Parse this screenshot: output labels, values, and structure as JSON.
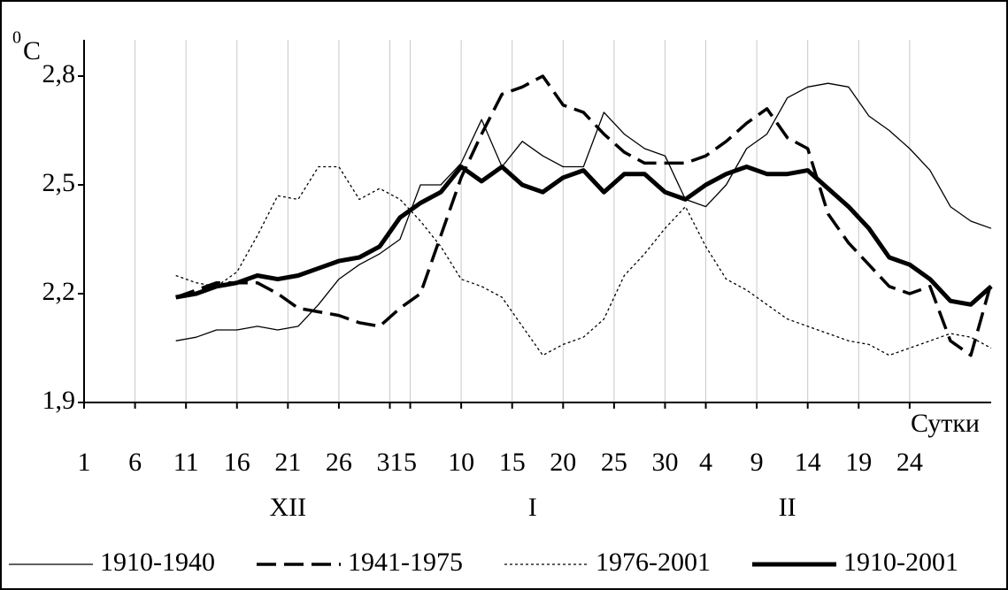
{
  "chart_data": {
    "type": "line",
    "y_label": "C",
    "y_label_sup": "0",
    "x_label": "Сутки",
    "x": [
      10,
      12,
      14,
      16,
      18,
      20,
      22,
      24,
      26,
      28,
      30,
      32,
      34,
      36,
      38,
      40,
      42,
      44,
      46,
      48,
      50,
      52,
      54,
      56,
      58,
      60,
      62,
      64,
      66,
      68,
      70,
      72,
      74,
      76,
      78,
      80,
      82,
      84,
      86,
      88,
      90
    ],
    "xlim": [
      1,
      90
    ],
    "xticks": [
      1,
      6,
      11,
      16,
      21,
      26,
      31,
      {
        "value": 33,
        "label": "5"
      },
      {
        "value": 38,
        "label": "10"
      },
      {
        "value": 43,
        "label": "15"
      },
      {
        "value": 48,
        "label": "20"
      },
      {
        "value": 53,
        "label": "25"
      },
      {
        "value": 58,
        "label": "30"
      },
      {
        "value": 62,
        "label": "4"
      },
      {
        "value": 67,
        "label": "9"
      },
      {
        "value": 72,
        "label": "14"
      },
      {
        "value": 77,
        "label": "19"
      },
      {
        "value": 82,
        "label": "24"
      }
    ],
    "month_labels": [
      {
        "value": 21,
        "label": "XII"
      },
      {
        "value": 45,
        "label": "I"
      },
      {
        "value": 70,
        "label": "II"
      }
    ],
    "ylim": [
      1.9,
      2.9
    ],
    "yticks": [
      {
        "value": 1.9,
        "label": "1,9"
      },
      {
        "value": 2.2,
        "label": "2,2"
      },
      {
        "value": 2.5,
        "label": "2,5"
      },
      {
        "value": 2.8,
        "label": "2,8"
      }
    ],
    "grid": true,
    "legend": "bottom",
    "series": [
      {
        "name": "1910-1940",
        "color": "#000000",
        "line_style": "thin",
        "values": [
          2.07,
          2.08,
          2.1,
          2.1,
          2.11,
          2.1,
          2.11,
          2.17,
          2.24,
          2.28,
          2.31,
          2.35,
          2.5,
          2.5,
          2.56,
          2.68,
          2.55,
          2.62,
          2.58,
          2.55,
          2.55,
          2.7,
          2.64,
          2.6,
          2.58,
          2.46,
          2.44,
          2.5,
          2.6,
          2.64,
          2.74,
          2.77,
          2.78,
          2.77,
          2.69,
          2.65,
          2.6,
          2.54,
          2.44,
          2.4,
          2.38
        ]
      },
      {
        "name": "1941-1975",
        "color": "#000000",
        "line_style": "dashed",
        "values": [
          2.19,
          2.21,
          2.23,
          2.23,
          2.23,
          2.2,
          2.16,
          2.15,
          2.14,
          2.12,
          2.11,
          2.16,
          2.2,
          2.36,
          2.52,
          2.64,
          2.75,
          2.77,
          2.8,
          2.72,
          2.7,
          2.64,
          2.59,
          2.56,
          2.56,
          2.56,
          2.58,
          2.62,
          2.67,
          2.71,
          2.63,
          2.6,
          2.42,
          2.34,
          2.28,
          2.22,
          2.2,
          2.22,
          2.07,
          2.03,
          2.23
        ]
      },
      {
        "name": "1976-2001",
        "color": "#000000",
        "line_style": "dotted",
        "values": [
          2.25,
          2.23,
          2.22,
          2.26,
          2.36,
          2.47,
          2.46,
          2.55,
          2.55,
          2.46,
          2.49,
          2.46,
          2.4,
          2.33,
          2.24,
          2.22,
          2.19,
          2.11,
          2.03,
          2.06,
          2.08,
          2.13,
          2.25,
          2.31,
          2.38,
          2.44,
          2.33,
          2.24,
          2.21,
          2.17,
          2.13,
          2.11,
          2.09,
          2.07,
          2.06,
          2.03,
          2.05,
          2.07,
          2.09,
          2.08,
          2.05
        ]
      },
      {
        "name": "1910-2001",
        "color": "#000000",
        "line_style": "thick",
        "values": [
          2.19,
          2.2,
          2.22,
          2.23,
          2.25,
          2.24,
          2.25,
          2.27,
          2.29,
          2.3,
          2.33,
          2.41,
          2.45,
          2.48,
          2.55,
          2.51,
          2.55,
          2.5,
          2.48,
          2.52,
          2.54,
          2.48,
          2.53,
          2.53,
          2.48,
          2.46,
          2.5,
          2.53,
          2.55,
          2.53,
          2.53,
          2.54,
          2.49,
          2.44,
          2.38,
          2.3,
          2.28,
          2.24,
          2.18,
          2.17,
          2.22
        ]
      }
    ]
  }
}
